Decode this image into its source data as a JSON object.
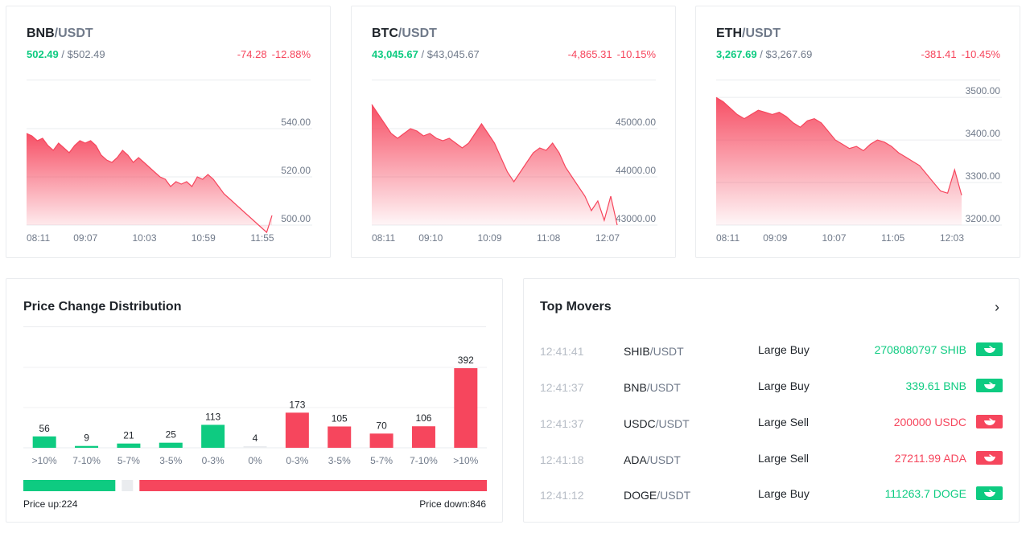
{
  "tickers": [
    {
      "base": "BNB",
      "quote": "/USDT",
      "last": "502.49",
      "sep": "/",
      "usd": "$502.49",
      "change": "-74.28",
      "change_pct": "-12.88%",
      "chart_data": {
        "type": "area",
        "x_ticks": [
          "08:11",
          "09:07",
          "10:03",
          "10:59",
          "11:55"
        ],
        "y_ticks": [
          "540.00",
          "520.00",
          "500.00"
        ],
        "y_tick_values": [
          540,
          520,
          500
        ],
        "ylim": [
          500,
          560
        ],
        "values": [
          538,
          537,
          535,
          536,
          533,
          531,
          534,
          532,
          530,
          533,
          535,
          534,
          535,
          533,
          529,
          527,
          526,
          528,
          531,
          529,
          526,
          528,
          526,
          524,
          522,
          520,
          519,
          516,
          518,
          517,
          518,
          516,
          520,
          519,
          521,
          519,
          516,
          513,
          511,
          509,
          507,
          505,
          503,
          501,
          499,
          497,
          504
        ]
      }
    },
    {
      "base": "BTC",
      "quote": "/USDT",
      "last": "43,045.67",
      "sep": "/",
      "usd": "$43,045.67",
      "change": "-4,865.31",
      "change_pct": "-10.15%",
      "chart_data": {
        "type": "area",
        "x_ticks": [
          "08:11",
          "09:10",
          "10:09",
          "11:08",
          "12:07"
        ],
        "y_ticks": [
          "45000.00",
          "44000.00",
          "43000.00"
        ],
        "y_tick_values": [
          45000,
          44000,
          43000
        ],
        "ylim": [
          43000,
          46000
        ],
        "values": [
          45500,
          45300,
          45100,
          44900,
          44800,
          44900,
          45000,
          44950,
          44850,
          44900,
          44800,
          44750,
          44800,
          44700,
          44600,
          44700,
          44900,
          45100,
          44900,
          44700,
          44400,
          44100,
          43900,
          44100,
          44300,
          44500,
          44600,
          44550,
          44700,
          44500,
          44200,
          44000,
          43800,
          43600,
          43300,
          43500,
          43100,
          43600,
          43000
        ]
      }
    },
    {
      "base": "ETH",
      "quote": "/USDT",
      "last": "3,267.69",
      "sep": "/",
      "usd": "$3,267.69",
      "change": "-381.41",
      "change_pct": "-10.45%",
      "chart_data": {
        "type": "area",
        "x_ticks": [
          "08:11",
          "09:09",
          "10:07",
          "11:05",
          "12:03"
        ],
        "y_ticks": [
          "3500.00",
          "3400.00",
          "3300.00",
          "3200.00"
        ],
        "y_tick_values": [
          3500,
          3400,
          3300,
          3200
        ],
        "ylim": [
          3200,
          3540
        ],
        "values": [
          3500,
          3490,
          3475,
          3460,
          3450,
          3460,
          3470,
          3465,
          3460,
          3465,
          3455,
          3440,
          3430,
          3445,
          3450,
          3440,
          3420,
          3400,
          3390,
          3380,
          3385,
          3375,
          3390,
          3400,
          3395,
          3385,
          3370,
          3360,
          3350,
          3340,
          3320,
          3300,
          3280,
          3275,
          3330,
          3270
        ]
      }
    }
  ],
  "distribution": {
    "title": "Price Change Distribution",
    "chart_data": {
      "type": "bar",
      "categories": [
        ">10%",
        "7-10%",
        "5-7%",
        "3-5%",
        "0-3%",
        "0%",
        "0-3%",
        "3-5%",
        "5-7%",
        "7-10%",
        ">10%"
      ],
      "values": [
        56,
        9,
        21,
        25,
        113,
        4,
        173,
        105,
        70,
        106,
        392
      ],
      "directions": [
        "up",
        "up",
        "up",
        "up",
        "up",
        "flat",
        "down",
        "down",
        "down",
        "down",
        "down"
      ],
      "ylim": [
        0,
        392
      ]
    },
    "up_label": "Price up:224",
    "down_label": "Price down:846",
    "up_count": 224,
    "flat_count": 4,
    "down_count": 846
  },
  "movers": {
    "title": "Top Movers",
    "chevron": "›",
    "rows": [
      {
        "time": "12:41:41",
        "base": "SHIB",
        "quote": "/USDT",
        "type": "Large Buy",
        "amount": "2708080797 SHIB",
        "dir": "up"
      },
      {
        "time": "12:41:37",
        "base": "BNB",
        "quote": "/USDT",
        "type": "Large Buy",
        "amount": "339.61 BNB",
        "dir": "up"
      },
      {
        "time": "12:41:37",
        "base": "USDC",
        "quote": "/USDT",
        "type": "Large Sell",
        "amount": "200000 USDC",
        "dir": "down"
      },
      {
        "time": "12:41:18",
        "base": "ADA",
        "quote": "/USDT",
        "type": "Large Sell",
        "amount": "27211.99 ADA",
        "dir": "down"
      },
      {
        "time": "12:41:12",
        "base": "DOGE",
        "quote": "/USDT",
        "type": "Large Buy",
        "amount": "111263.7 DOGE",
        "dir": "up"
      }
    ]
  },
  "colors": {
    "up": "#0ecb81",
    "down": "#f6465d",
    "flat": "#eaecef",
    "text": "#1e2329",
    "muted": "#707a8a"
  }
}
